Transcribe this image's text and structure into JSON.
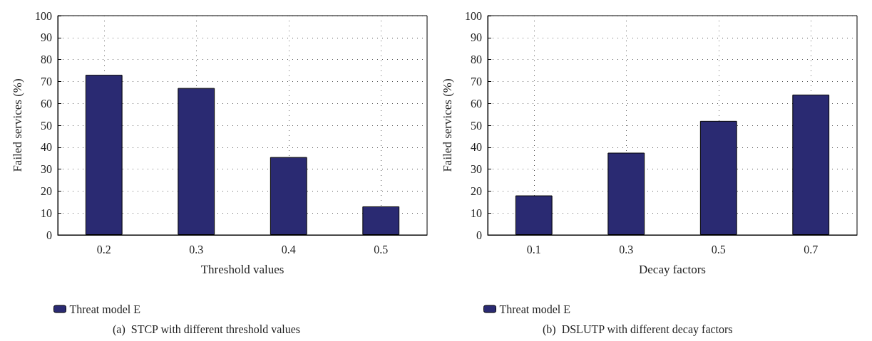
{
  "chart_data": [
    {
      "type": "bar",
      "xlabel": "Threshold values",
      "ylabel": "Failed services (%)",
      "categories": [
        "0.2",
        "0.3",
        "0.4",
        "0.5"
      ],
      "series": [
        {
          "name": "Threat model E",
          "color": "#2a2a72",
          "values": [
            73,
            67,
            35.5,
            13
          ]
        }
      ],
      "ylim": [
        0,
        100
      ],
      "yticks": [
        0,
        10,
        20,
        30,
        40,
        50,
        60,
        70,
        80,
        90,
        100
      ],
      "grid": true,
      "legend": "bottom left",
      "annotations": [
        "(a)  STCP with different threshold values"
      ]
    },
    {
      "type": "bar",
      "xlabel": "Decay factors",
      "ylabel": "Failed services (%)",
      "categories": [
        "0.1",
        "0.3",
        "0.5",
        "0.7"
      ],
      "series": [
        {
          "name": "Threat model E",
          "color": "#2a2a72",
          "values": [
            18,
            37.5,
            52,
            64
          ]
        }
      ],
      "ylim": [
        0,
        100
      ],
      "yticks": [
        0,
        10,
        20,
        30,
        40,
        50,
        60,
        70,
        80,
        90,
        100
      ],
      "grid": true,
      "legend": "bottom left",
      "annotations": [
        "(b)  DSLUTP with different decay factors"
      ]
    }
  ]
}
